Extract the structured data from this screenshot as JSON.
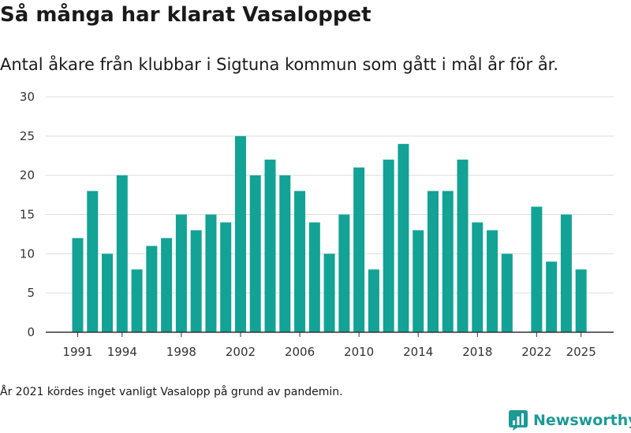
{
  "title": "Så många har klarat Vasaloppet",
  "subtitle": "Antal åkare från klubbar i Sigtuna kommun som gått i mål år för år.",
  "footnote": "År 2021 kördes inget vanligt Vasalopp på grund av pandemin.",
  "brand": {
    "name": "Newsworthy",
    "color": "#1c9a95"
  },
  "colors": {
    "bar": "#12a296",
    "grid": "#dddddd",
    "axis": "#333333"
  },
  "chart_data": {
    "type": "bar",
    "title": "Så många har klarat Vasaloppet",
    "xlabel": "",
    "ylabel": "",
    "ylim": [
      0,
      30
    ],
    "yticks": [
      0,
      5,
      10,
      15,
      20,
      25,
      30
    ],
    "xticks": [
      1991,
      1994,
      1998,
      2002,
      2006,
      2010,
      2014,
      2018,
      2022,
      2025
    ],
    "grid": true,
    "categories": [
      1991,
      1992,
      1993,
      1994,
      1995,
      1996,
      1997,
      1998,
      1999,
      2000,
      2001,
      2002,
      2003,
      2004,
      2005,
      2006,
      2007,
      2008,
      2009,
      2010,
      2011,
      2012,
      2013,
      2014,
      2015,
      2016,
      2017,
      2018,
      2019,
      2020,
      2021,
      2022,
      2023,
      2024,
      2025
    ],
    "values": [
      12,
      18,
      10,
      20,
      8,
      11,
      12,
      15,
      13,
      15,
      14,
      25,
      20,
      22,
      20,
      18,
      14,
      10,
      15,
      21,
      8,
      22,
      24,
      13,
      18,
      18,
      22,
      14,
      13,
      10,
      null,
      16,
      9,
      15,
      8
    ]
  }
}
